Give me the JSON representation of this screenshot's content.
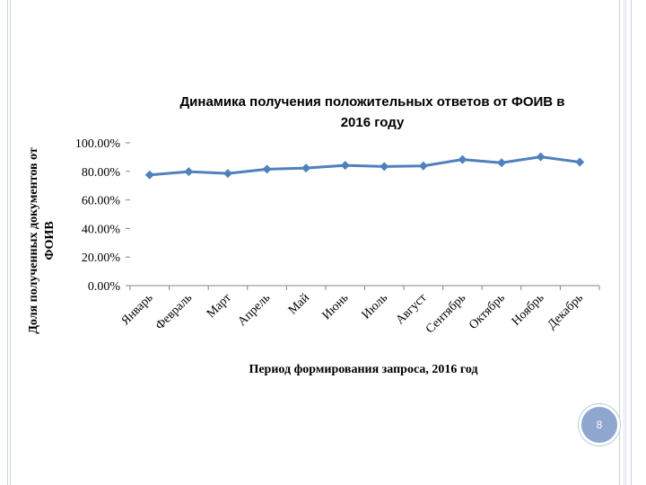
{
  "chart_data": {
    "type": "line",
    "title": "Динамика получения положительных ответов от ФОИВ в 2016 году",
    "title_lines": [
      "Динамика получения положительных ответов от ФОИВ в",
      "2016 году"
    ],
    "xlabel": "Период формирования запроса, 2016 год",
    "ylabel": "Доля полученных документов от ФОИВ",
    "ylabel_lines": [
      "Доля полученных документов от",
      "ФОИВ"
    ],
    "categories": [
      "Январь",
      "Февраль",
      "Март",
      "Апрель",
      "Май",
      "Июнь",
      "Июль",
      "Август",
      "Сентябрь",
      "Октябрь",
      "Ноябрь",
      "Декабрь"
    ],
    "series": [
      {
        "values": [
          77.5,
          79.8,
          78.5,
          81.5,
          82.3,
          84.2,
          83.4,
          83.8,
          88.3,
          86.0,
          90.2,
          86.5
        ],
        "color": "#4f81bd"
      }
    ],
    "yticks": [
      "0.00%",
      "20.00%",
      "40.00%",
      "60.00%",
      "80.00%",
      "100.00%"
    ],
    "ylim": [
      0,
      100
    ],
    "grid": false,
    "legend": "none"
  },
  "page_number": "8"
}
